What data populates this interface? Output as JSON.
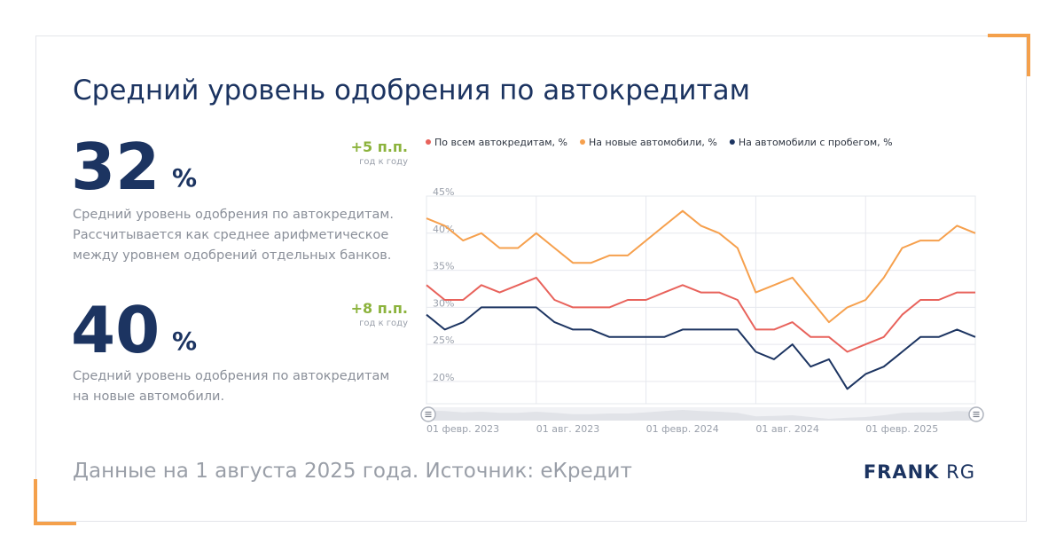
{
  "title": "Средний уровень одобрения по автокредитам",
  "stats": [
    {
      "value": "32",
      "unit": "%",
      "delta": "+5 п.п.",
      "delta_note": "год к году",
      "description": "Средний уровень одобрения по автокредитам. Рассчитывается как среднее арифметическое между уровнем одобрений отдельных банков."
    },
    {
      "value": "40",
      "unit": "%",
      "delta": "+8 п.п.",
      "delta_note": "год к году",
      "description": "Средний уровень одобрения по автокредитам на новые автомобили."
    }
  ],
  "footer": "Данные на 1 августа 2025 года. Источник: еКредит",
  "logo": {
    "bold": "FRANK",
    "light": "RG"
  },
  "colors": {
    "accent": "#f4a04b",
    "navy": "#1c3461",
    "green": "#8cb33d",
    "red": "#e8625b",
    "orange": "#f6a04d"
  },
  "chart_data": {
    "type": "line",
    "x": [
      "2023-02",
      "2023-03",
      "2023-04",
      "2023-05",
      "2023-06",
      "2023-07",
      "2023-08",
      "2023-09",
      "2023-10",
      "2023-11",
      "2023-12",
      "2024-01",
      "2024-02",
      "2024-03",
      "2024-04",
      "2024-05",
      "2024-06",
      "2024-07",
      "2024-08",
      "2024-09",
      "2024-10",
      "2024-11",
      "2024-12",
      "2025-01",
      "2025-02",
      "2025-03",
      "2025-04",
      "2025-05",
      "2025-06",
      "2025-07",
      "2025-08"
    ],
    "x_tick_labels": [
      {
        "label": "01 февр. 2023",
        "index": 0
      },
      {
        "label": "01 авг. 2023",
        "index": 6
      },
      {
        "label": "01 февр. 2024",
        "index": 12
      },
      {
        "label": "01 авг. 2024",
        "index": 18
      },
      {
        "label": "01 февр. 2025",
        "index": 24
      }
    ],
    "y_ticks": [
      "20%",
      "25%",
      "30%",
      "35%",
      "40%",
      "45%"
    ],
    "y_tick_values": [
      20,
      25,
      30,
      35,
      40,
      45
    ],
    "ylim": [
      17,
      45
    ],
    "grid": true,
    "legend_position": "top",
    "series": [
      {
        "name": "По всем автокредитам, %",
        "color": "#e8625b",
        "values": [
          33,
          31,
          31,
          33,
          32,
          33,
          34,
          31,
          30,
          30,
          30,
          31,
          31,
          32,
          33,
          32,
          32,
          31,
          27,
          27,
          28,
          26,
          26,
          24,
          25,
          26,
          29,
          31,
          31,
          32,
          32
        ]
      },
      {
        "name": "На новые автомобили, %",
        "color": "#f6a04d",
        "values": [
          42,
          41,
          39,
          40,
          38,
          38,
          40,
          38,
          36,
          36,
          37,
          37,
          39,
          41,
          43,
          41,
          40,
          38,
          32,
          33,
          34,
          31,
          28,
          30,
          31,
          34,
          38,
          39,
          39,
          41,
          40
        ]
      },
      {
        "name": "На автомобили с пробегом, %",
        "color": "#1c3461",
        "values": [
          29,
          27,
          28,
          30,
          30,
          30,
          30,
          28,
          27,
          27,
          26,
          26,
          26,
          26,
          27,
          27,
          27,
          27,
          24,
          23,
          25,
          22,
          23,
          19,
          21,
          22,
          24,
          26,
          26,
          27,
          26
        ]
      }
    ]
  }
}
